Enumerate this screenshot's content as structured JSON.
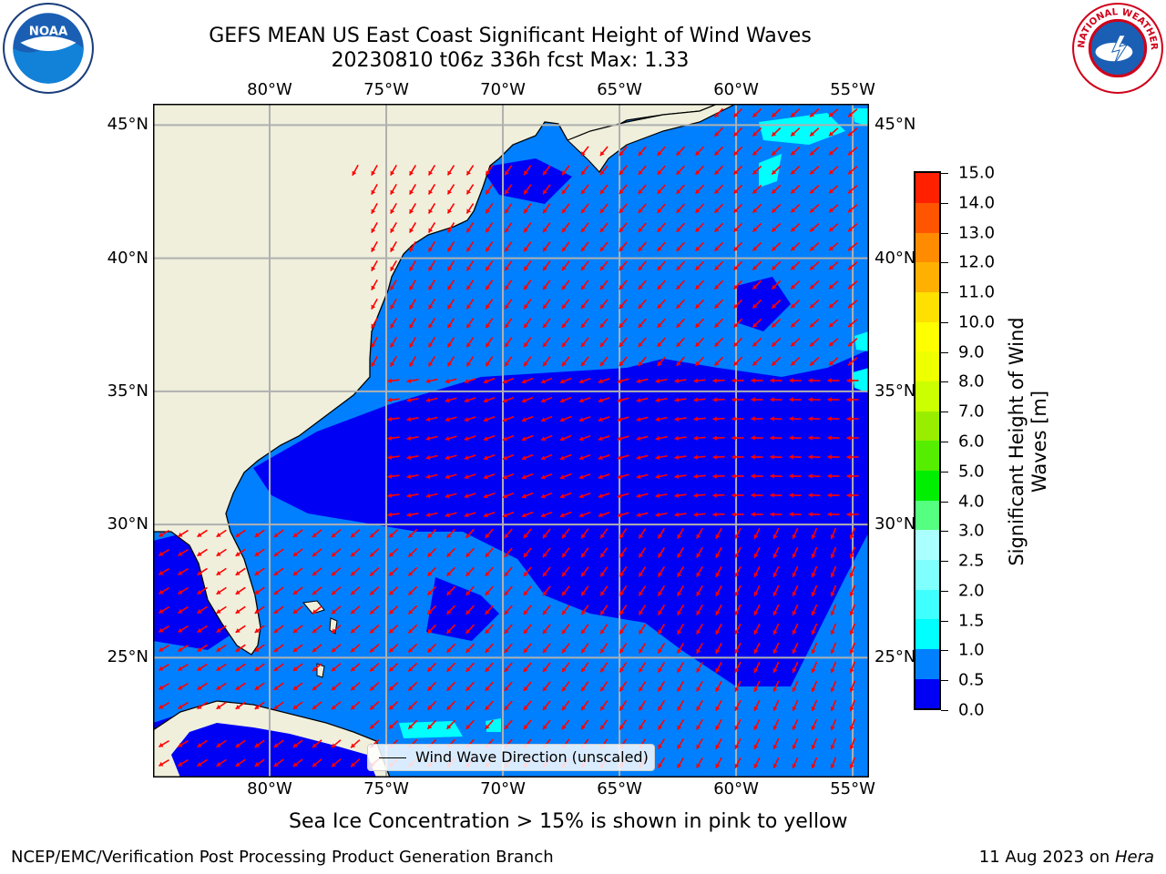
{
  "title": {
    "line1": "GEFS MEAN US East Coast Significant Height of Wind Waves",
    "line2": "20230810 t06z 336h fcst   Max: 1.33"
  },
  "logos": {
    "left": {
      "name": "noaa-logo",
      "text": "NOAA"
    },
    "right": {
      "name": "nws-logo",
      "text": "NATIONAL WEATHER SERVICE"
    }
  },
  "map": {
    "lon_labels": [
      "80°W",
      "75°W",
      "70°W",
      "65°W",
      "60°W",
      "55°W"
    ],
    "lat_labels": [
      "45°N",
      "40°N",
      "35°N",
      "30°N",
      "25°N"
    ],
    "lon_values": [
      -80,
      -75,
      -70,
      -65,
      -60,
      -55
    ],
    "lat_values": [
      45,
      40,
      35,
      30,
      25
    ],
    "extent": {
      "lon_min": -85,
      "lon_max": -54.3,
      "lat_min": 20.5,
      "lat_max": 45.8
    },
    "land_color": "#efefdc",
    "ocean_colors": {
      "0.0-0.5": "#0000f5",
      "0.5-1.0": "#0080ff",
      "1.0-1.5": "#00ffff"
    },
    "arrow_color": "#ff0000",
    "grid_color": "#b0b0b0"
  },
  "legend": {
    "label": "Wind Wave Direction (unscaled)"
  },
  "colorbar": {
    "title": "Significant Height of Wind Waves [m]",
    "ticks": [
      "0.0",
      "0.5",
      "1.0",
      "1.5",
      "2.0",
      "2.5",
      "3.0",
      "4.0",
      "5.0",
      "6.0",
      "7.0",
      "8.0",
      "9.0",
      "10.0",
      "11.0",
      "12.0",
      "13.0",
      "14.0",
      "15.0"
    ],
    "colors": [
      "#0000f5",
      "#0080ff",
      "#00ffff",
      "#40ffff",
      "#80ffff",
      "#aaffff",
      "#55ff80",
      "#00ee00",
      "#55ee00",
      "#99ee00",
      "#ccff00",
      "#eeff00",
      "#ffff00",
      "#ffe000",
      "#ffb000",
      "#ff8c00",
      "#ff5500",
      "#ff2000"
    ]
  },
  "ice_note": "Sea Ice Concentration > 15% is shown in pink to yellow",
  "footer": {
    "left": "NCEP/EMC/Verification Post Processing Product Generation Branch",
    "right_date": "11 Aug 2023 on ",
    "right_host": "Hera"
  }
}
